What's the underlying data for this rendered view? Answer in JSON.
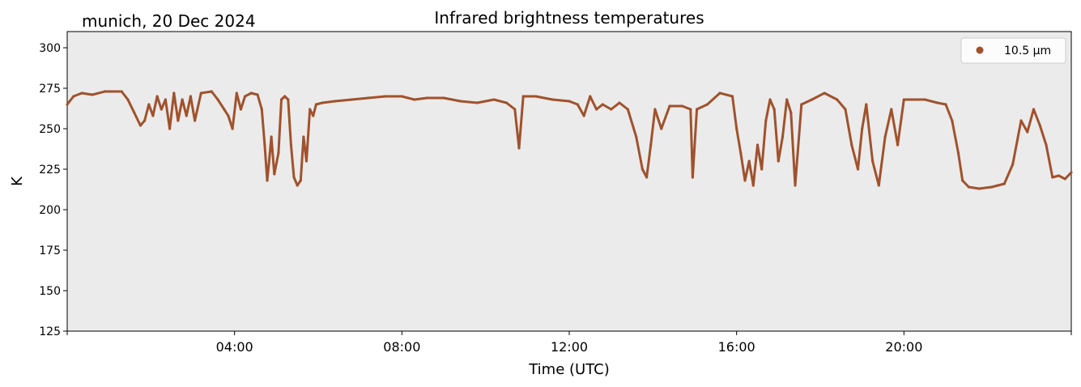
{
  "chart_data": {
    "type": "scatter",
    "title": "Infrared brightness temperatures",
    "subtitle": "munich, 20 Dec 2024",
    "xlabel": "Time (UTC)",
    "ylabel": "K",
    "xlim_hours": [
      0,
      24
    ],
    "ylim": [
      125,
      310
    ],
    "yticks": [
      125,
      150,
      175,
      200,
      225,
      250,
      275,
      300
    ],
    "xticks": [
      {
        "hour": 4,
        "label": "04:00"
      },
      {
        "hour": 8,
        "label": "08:00"
      },
      {
        "hour": 12,
        "label": "12:00"
      },
      {
        "hour": 16,
        "label": "16:00"
      },
      {
        "hour": 20,
        "label": "20:00"
      }
    ],
    "legend": {
      "position": "top-right"
    },
    "colors": {
      "series": "#a0522d",
      "plot_bg": "#ebebeb"
    },
    "series": [
      {
        "name": "10.5 µm",
        "color": "#a0522d",
        "points": [
          [
            0.0,
            265
          ],
          [
            0.15,
            270
          ],
          [
            0.35,
            272
          ],
          [
            0.6,
            271
          ],
          [
            0.9,
            273
          ],
          [
            1.3,
            273
          ],
          [
            1.45,
            268
          ],
          [
            1.6,
            260
          ],
          [
            1.75,
            252
          ],
          [
            1.85,
            255
          ],
          [
            1.95,
            265
          ],
          [
            2.05,
            258
          ],
          [
            2.15,
            270
          ],
          [
            2.25,
            262
          ],
          [
            2.35,
            268
          ],
          [
            2.45,
            250
          ],
          [
            2.55,
            272
          ],
          [
            2.65,
            255
          ],
          [
            2.75,
            268
          ],
          [
            2.85,
            258
          ],
          [
            2.95,
            270
          ],
          [
            3.05,
            255
          ],
          [
            3.2,
            272
          ],
          [
            3.45,
            273
          ],
          [
            3.6,
            268
          ],
          [
            3.75,
            262
          ],
          [
            3.85,
            258
          ],
          [
            3.95,
            250
          ],
          [
            4.05,
            272
          ],
          [
            4.15,
            262
          ],
          [
            4.25,
            270
          ],
          [
            4.4,
            272
          ],
          [
            4.55,
            271
          ],
          [
            4.65,
            262
          ],
          [
            4.72,
            240
          ],
          [
            4.78,
            218
          ],
          [
            4.82,
            228
          ],
          [
            4.88,
            245
          ],
          [
            4.95,
            222
          ],
          [
            5.05,
            235
          ],
          [
            5.12,
            268
          ],
          [
            5.2,
            270
          ],
          [
            5.28,
            268
          ],
          [
            5.35,
            240
          ],
          [
            5.42,
            220
          ],
          [
            5.5,
            215
          ],
          [
            5.58,
            218
          ],
          [
            5.65,
            245
          ],
          [
            5.72,
            230
          ],
          [
            5.8,
            262
          ],
          [
            5.88,
            258
          ],
          [
            5.95,
            265
          ],
          [
            6.1,
            266
          ],
          [
            6.4,
            267
          ],
          [
            6.8,
            268
          ],
          [
            7.2,
            269
          ],
          [
            7.6,
            270
          ],
          [
            8.0,
            270
          ],
          [
            8.3,
            268
          ],
          [
            8.6,
            269
          ],
          [
            9.0,
            269
          ],
          [
            9.4,
            267
          ],
          [
            9.8,
            266
          ],
          [
            10.2,
            268
          ],
          [
            10.5,
            266
          ],
          [
            10.7,
            262
          ],
          [
            10.8,
            238
          ],
          [
            10.9,
            270
          ],
          [
            11.2,
            270
          ],
          [
            11.6,
            268
          ],
          [
            12.0,
            267
          ],
          [
            12.2,
            265
          ],
          [
            12.35,
            258
          ],
          [
            12.5,
            270
          ],
          [
            12.65,
            262
          ],
          [
            12.8,
            265
          ],
          [
            13.0,
            262
          ],
          [
            13.2,
            266
          ],
          [
            13.4,
            262
          ],
          [
            13.6,
            245
          ],
          [
            13.75,
            225
          ],
          [
            13.85,
            220
          ],
          [
            13.95,
            240
          ],
          [
            14.05,
            262
          ],
          [
            14.2,
            250
          ],
          [
            14.4,
            264
          ],
          [
            14.7,
            264
          ],
          [
            14.9,
            262
          ],
          [
            14.95,
            220
          ],
          [
            15.05,
            262
          ],
          [
            15.3,
            265
          ],
          [
            15.6,
            272
          ],
          [
            15.9,
            270
          ],
          [
            16.0,
            250
          ],
          [
            16.1,
            235
          ],
          [
            16.2,
            218
          ],
          [
            16.3,
            230
          ],
          [
            16.4,
            215
          ],
          [
            16.5,
            240
          ],
          [
            16.6,
            225
          ],
          [
            16.7,
            255
          ],
          [
            16.8,
            268
          ],
          [
            16.9,
            262
          ],
          [
            17.0,
            230
          ],
          [
            17.1,
            245
          ],
          [
            17.2,
            268
          ],
          [
            17.3,
            260
          ],
          [
            17.4,
            215
          ],
          [
            17.55,
            265
          ],
          [
            17.8,
            268
          ],
          [
            18.1,
            272
          ],
          [
            18.4,
            268
          ],
          [
            18.6,
            262
          ],
          [
            18.75,
            240
          ],
          [
            18.9,
            225
          ],
          [
            19.0,
            250
          ],
          [
            19.1,
            265
          ],
          [
            19.25,
            230
          ],
          [
            19.4,
            215
          ],
          [
            19.55,
            245
          ],
          [
            19.7,
            262
          ],
          [
            19.85,
            240
          ],
          [
            20.0,
            268
          ],
          [
            20.2,
            268
          ],
          [
            20.5,
            268
          ],
          [
            20.8,
            266
          ],
          [
            21.0,
            265
          ],
          [
            21.15,
            255
          ],
          [
            21.3,
            235
          ],
          [
            21.4,
            218
          ],
          [
            21.55,
            214
          ],
          [
            21.8,
            213
          ],
          [
            22.1,
            214
          ],
          [
            22.4,
            216
          ],
          [
            22.6,
            228
          ],
          [
            22.8,
            255
          ],
          [
            22.95,
            248
          ],
          [
            23.1,
            262
          ],
          [
            23.25,
            252
          ],
          [
            23.4,
            240
          ],
          [
            23.55,
            220
          ],
          [
            23.7,
            221
          ],
          [
            23.85,
            219
          ],
          [
            24.0,
            223
          ]
        ]
      }
    ]
  }
}
